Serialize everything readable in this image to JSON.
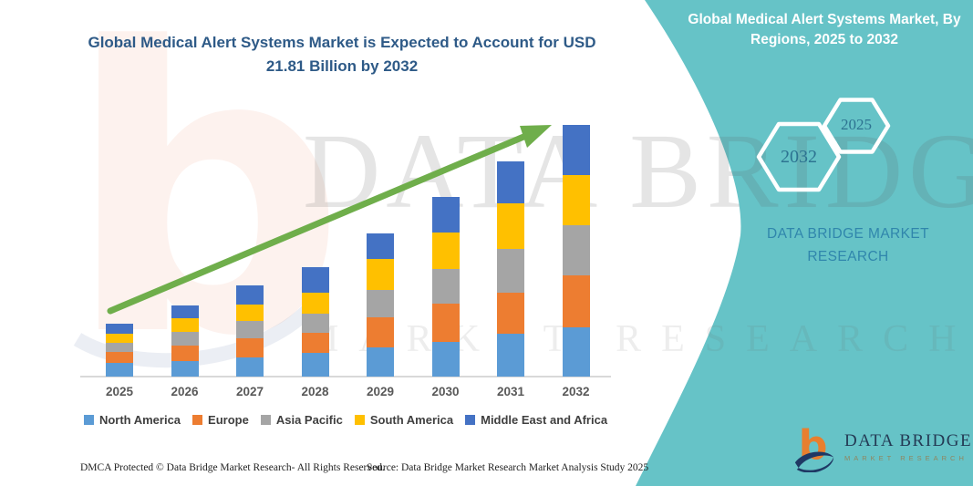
{
  "title": "Global Medical Alert Systems Market is Expected to Account for USD 21.81 Billion by 2032",
  "panel": {
    "title": "Global Medical Alert Systems Market, By Regions, 2025 to 2032",
    "accent_teal": "#66C3C7",
    "hexagons": [
      {
        "label": "2032"
      },
      {
        "label": "2025"
      }
    ],
    "brand": "DATA BRIDGE MARKET RESEARCH"
  },
  "watermark": {
    "letter_b": "b",
    "brand_text": "DATA BRIDGE",
    "sub_text": "MARKET RESEARCH"
  },
  "footer": {
    "dmca": "DMCA Protected © Data Bridge Market Research-  All Rights Reserved.",
    "source": "Source: Data Bridge Market Research  Market Analysis Study 2025",
    "logo": {
      "name": "DATA BRIDGE",
      "tagline": "MARKET RESEARCH"
    }
  },
  "chart_data": {
    "type": "bar",
    "stacked": true,
    "title": "Global Medical Alert Systems Market is Expected to Account for USD 21.81 Billion by 2032",
    "unit": "USD Billion",
    "categories": [
      "2025",
      "2026",
      "2027",
      "2028",
      "2029",
      "2030",
      "2031",
      "2032"
    ],
    "series": [
      {
        "name": "North America",
        "color": "#5B9BD5",
        "values": [
          1.19,
          1.34,
          1.66,
          2.05,
          2.53,
          3.0,
          3.71,
          4.27
        ]
      },
      {
        "name": "Europe",
        "color": "#ED7D31",
        "values": [
          0.95,
          1.34,
          1.66,
          1.74,
          2.61,
          3.32,
          3.56,
          4.5
        ]
      },
      {
        "name": "Asia Pacific",
        "color": "#A5A5A5",
        "values": [
          0.79,
          1.19,
          1.5,
          1.66,
          2.37,
          3.0,
          3.79,
          4.35
        ]
      },
      {
        "name": "South America",
        "color": "#FFC000",
        "values": [
          0.79,
          1.19,
          1.42,
          1.82,
          2.69,
          3.16,
          3.95,
          4.35
        ]
      },
      {
        "name": "Middle East and Africa",
        "color": "#4472C4",
        "values": [
          0.87,
          1.11,
          1.66,
          2.21,
          2.21,
          3.08,
          3.63,
          4.34
        ]
      }
    ],
    "totals": [
      4.59,
      6.17,
      7.9,
      9.48,
      12.41,
      15.56,
      18.64,
      21.81
    ],
    "ylim": [
      0,
      22
    ],
    "grid": false,
    "legend_position": "bottom",
    "annotations": [
      "green upward trend arrow from 2025 to 2032"
    ],
    "arrow_color": "#6FAE4B"
  }
}
